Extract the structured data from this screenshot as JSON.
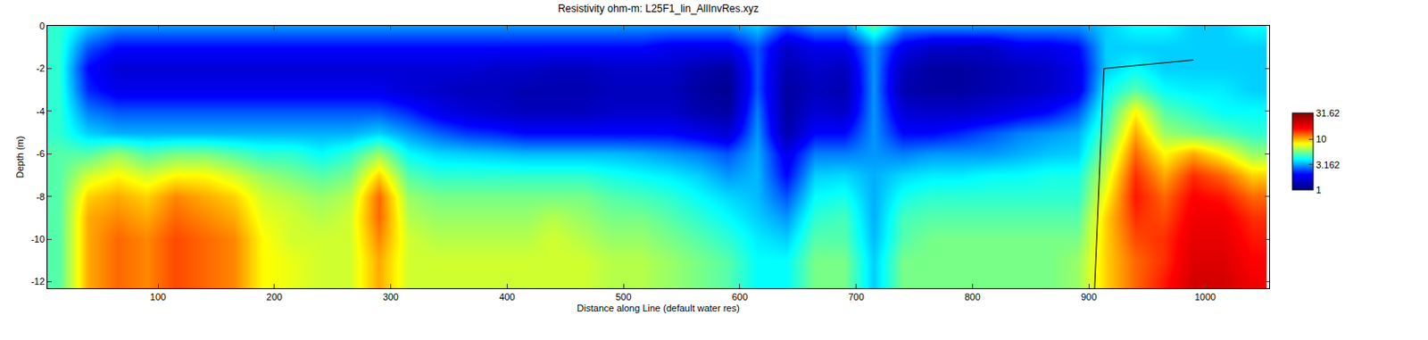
{
  "chart_data": {
    "type": "heatmap",
    "title": "Resistivity ohm-m: L25F1_lin_AllInvRes.xyz",
    "x_label": "Distance along Line (default water res)",
    "y_label": "Depth (m)",
    "x": [
      15,
      40,
      65,
      90,
      115,
      140,
      165,
      190,
      215,
      240,
      265,
      290,
      315,
      340,
      365,
      390,
      415,
      440,
      465,
      490,
      515,
      540,
      565,
      590,
      615,
      640,
      665,
      690,
      715,
      740,
      765,
      790,
      815,
      840,
      865,
      890,
      915,
      940,
      965,
      990,
      1015,
      1040
    ],
    "y": [
      0,
      -1,
      -2,
      -3,
      -4,
      -5,
      -6,
      -7,
      -8,
      -9,
      -10,
      -11,
      -12
    ],
    "z": [
      [
        4.5,
        3.5,
        3,
        3,
        3,
        3,
        3,
        3,
        3,
        3,
        3,
        3,
        3,
        3,
        3,
        3,
        3,
        3,
        3,
        3,
        3,
        3,
        3,
        3,
        3.5,
        2.5,
        3,
        3,
        5,
        3,
        3,
        3,
        3,
        3,
        3,
        3,
        3.5,
        4,
        4,
        3.5,
        3.5,
        4
      ],
      [
        4.5,
        2.5,
        2,
        2,
        2,
        2,
        2,
        2,
        2,
        2,
        2,
        2,
        2,
        2,
        2,
        2,
        2,
        2,
        2,
        2,
        2,
        1.8,
        1.8,
        1.8,
        2.5,
        1.5,
        1.8,
        1.8,
        3,
        1.8,
        1.5,
        1.5,
        1.5,
        1.8,
        1.8,
        2,
        3.5,
        3.5,
        3.5,
        3.5,
        3.5,
        3.5
      ],
      [
        4.5,
        2,
        1.6,
        1.6,
        1.6,
        1.6,
        1.6,
        1.6,
        1.6,
        1.6,
        1.6,
        1.6,
        1.6,
        1.6,
        1.6,
        1.5,
        1.5,
        1.4,
        1.4,
        1.5,
        1.5,
        1.5,
        1.3,
        1.2,
        2.5,
        1.3,
        1.5,
        1.4,
        3,
        1.4,
        1.2,
        1.2,
        1.3,
        1.4,
        1.5,
        1.8,
        3.5,
        4,
        3.5,
        3.5,
        3.5,
        3.5
      ],
      [
        4.5,
        2.2,
        1.8,
        1.8,
        1.8,
        1.8,
        1.8,
        1.8,
        1.8,
        1.8,
        1.8,
        1.8,
        1.6,
        1.5,
        1.4,
        1.4,
        1.3,
        1.3,
        1.3,
        1.4,
        1.4,
        1.4,
        1.2,
        1.1,
        2.5,
        1.2,
        1.4,
        1.3,
        3,
        1.3,
        1.2,
        1.2,
        1.3,
        1.4,
        1.5,
        1.8,
        4,
        5,
        4,
        3.8,
        3.8,
        3.5
      ],
      [
        4.5,
        2.8,
        2.5,
        2.5,
        2.5,
        2.5,
        2.5,
        2.5,
        2.5,
        2.5,
        2.5,
        2.5,
        2.2,
        1.8,
        1.6,
        1.5,
        1.4,
        1.4,
        1.4,
        1.5,
        1.5,
        1.5,
        1.3,
        1.2,
        2.8,
        1.2,
        1.6,
        1.5,
        3,
        1.6,
        1.5,
        1.5,
        1.6,
        1.8,
        2,
        2.5,
        4.5,
        8,
        5,
        4.5,
        4,
        4
      ],
      [
        4.5,
        3.5,
        3.2,
        3.2,
        3.2,
        3.2,
        3.2,
        3.2,
        3.2,
        3.2,
        3.2,
        3.5,
        3,
        2.6,
        2.3,
        2.2,
        2,
        2,
        2,
        2,
        2,
        2,
        1.8,
        1.6,
        3,
        1.3,
        2,
        2,
        3,
        2,
        2,
        2.2,
        2.5,
        2.8,
        3,
        3.2,
        5,
        10,
        6,
        5.5,
        5,
        4.5
      ],
      [
        5,
        5,
        6,
        5,
        5.5,
        5.5,
        5,
        4.5,
        4.5,
        4,
        4.5,
        6,
        4,
        3.6,
        3.5,
        3.4,
        3.3,
        3.3,
        3.3,
        3.3,
        3.2,
        3,
        2.8,
        2.5,
        3.2,
        1.8,
        2.8,
        2.8,
        3,
        2.8,
        3,
        3,
        3,
        3.2,
        3.4,
        3.5,
        6,
        12,
        8,
        10,
        8,
        6
      ],
      [
        5,
        7,
        8,
        7,
        8,
        8,
        7,
        6,
        5.5,
        5,
        5.5,
        9,
        5,
        4.5,
        4.5,
        4.5,
        4.5,
        4.5,
        4.5,
        4.2,
        4,
        3.8,
        3.5,
        3,
        3.3,
        2,
        3.5,
        3.6,
        3.2,
        3.6,
        3.8,
        3.8,
        4,
        4,
        4.2,
        4.2,
        7,
        14,
        10,
        14,
        12,
        9
      ],
      [
        5,
        9,
        10,
        9,
        11,
        10,
        9,
        7,
        6.5,
        6,
        6.5,
        12,
        6,
        5.5,
        5.5,
        5.5,
        5.5,
        5.5,
        5.5,
        5,
        4.8,
        4.5,
        4,
        3.6,
        3.3,
        2.5,
        4,
        4.2,
        3.2,
        4.2,
        4.5,
        4.5,
        4.5,
        4.5,
        4.5,
        4.5,
        8,
        15,
        12,
        16,
        15,
        12
      ],
      [
        5,
        10,
        11,
        10,
        12,
        11,
        10,
        7.5,
        7,
        6.5,
        7,
        12,
        6.5,
        6,
        6,
        6,
        6,
        6.5,
        6,
        5.5,
        5.5,
        5,
        4.5,
        4,
        3.5,
        3,
        4.5,
        4.8,
        3.2,
        4.8,
        5,
        5,
        5,
        5,
        5,
        5,
        9,
        14,
        13,
        17,
        17,
        14
      ],
      [
        5,
        10,
        12,
        11,
        13,
        12,
        11,
        8,
        7,
        7,
        7,
        11,
        7,
        6.5,
        6.5,
        6.5,
        6.5,
        7,
        6.5,
        6,
        6,
        5.5,
        5,
        4.5,
        3.8,
        3.5,
        5,
        5,
        3.3,
        5,
        5.5,
        5.5,
        5.5,
        5.5,
        5.5,
        5.5,
        9,
        13,
        14,
        18,
        18,
        15
      ],
      [
        5,
        10,
        12,
        11,
        13,
        12,
        11,
        8,
        7.5,
        7,
        7,
        10,
        7,
        7,
        7,
        7,
        7,
        7,
        7,
        6.5,
        6.5,
        6,
        5.5,
        5,
        4,
        4,
        5.5,
        5.5,
        3.5,
        5.5,
        5.5,
        5.5,
        5.5,
        5.5,
        5.5,
        6,
        9,
        12,
        14,
        19,
        19,
        16
      ],
      [
        5,
        10,
        12,
        11,
        13,
        12,
        11,
        8,
        7.5,
        7,
        7,
        10,
        7,
        7,
        7,
        7,
        7,
        7,
        7,
        6.5,
        6.5,
        6,
        5.5,
        5,
        4,
        4,
        5.5,
        5.5,
        3.5,
        5.5,
        5.5,
        5.5,
        5.5,
        5.5,
        5.5,
        6,
        9,
        12,
        15,
        20,
        20,
        17
      ]
    ],
    "log": true,
    "color_range": [
      1,
      31.62
    ],
    "color_ticks": [
      1,
      3.162,
      10,
      31.62
    ],
    "colors": [
      "#00007f",
      "#0000ff",
      "#00ffff",
      "#ffff00",
      "#ff0000",
      "#7f0000"
    ],
    "line": {
      "x": [
        905,
        913,
        990
      ],
      "y": [
        -12.3,
        -2,
        -1.6
      ],
      "color": "#000000"
    },
    "xlim": [
      5,
      1055
    ],
    "xticks": [
      100,
      200,
      300,
      400,
      500,
      600,
      700,
      800,
      900,
      1000
    ],
    "ylim": [
      -12.3,
      0
    ],
    "yticks": [
      0,
      -2,
      -4,
      -6,
      -8,
      -10,
      -12
    ],
    "grid": false
  }
}
